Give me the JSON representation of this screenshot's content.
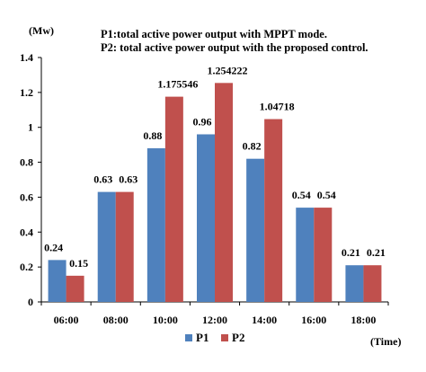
{
  "chart_data": {
    "type": "bar",
    "title": "",
    "ylabel": "(Mw)",
    "xlabel": "(Time)",
    "categories": [
      "06:00",
      "08:00",
      "10:00",
      "12:00",
      "14:00",
      "16:00",
      "18:00"
    ],
    "series": [
      {
        "name": "P1",
        "color": "#4f81bd",
        "values": [
          0.24,
          0.63,
          0.88,
          0.96,
          0.82,
          0.54,
          0.21
        ],
        "labels": [
          "0.24",
          "0.63",
          "0.88",
          "0.96",
          "0.82",
          "0.54",
          "0.21"
        ]
      },
      {
        "name": "P2",
        "color": "#c0504d",
        "values": [
          0.15,
          0.63,
          1.175546,
          1.254222,
          1.04718,
          0.54,
          0.21
        ],
        "labels": [
          "0.15",
          "0.63",
          "1.175546",
          "1.254222",
          "1.04718",
          "0.54",
          "0.21"
        ]
      }
    ],
    "ylim": [
      0,
      1.4
    ],
    "yticks": [
      "0",
      "0.2",
      "0.4",
      "0.6",
      "0.8",
      "1",
      "1.2",
      "1.4"
    ],
    "grid": false,
    "legend_position": "bottom",
    "annotations": [
      "P1:total active power output with MPPT mode.",
      "P2: total active power output with the proposed control."
    ]
  }
}
